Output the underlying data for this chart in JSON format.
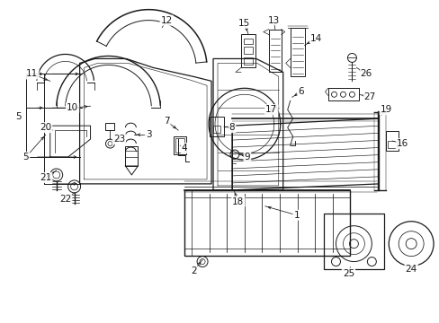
{
  "bg_color": "#ffffff",
  "line_color": "#1a1a1a",
  "figsize": [
    4.89,
    3.6
  ],
  "dpi": 100,
  "label_fs": 7.5
}
